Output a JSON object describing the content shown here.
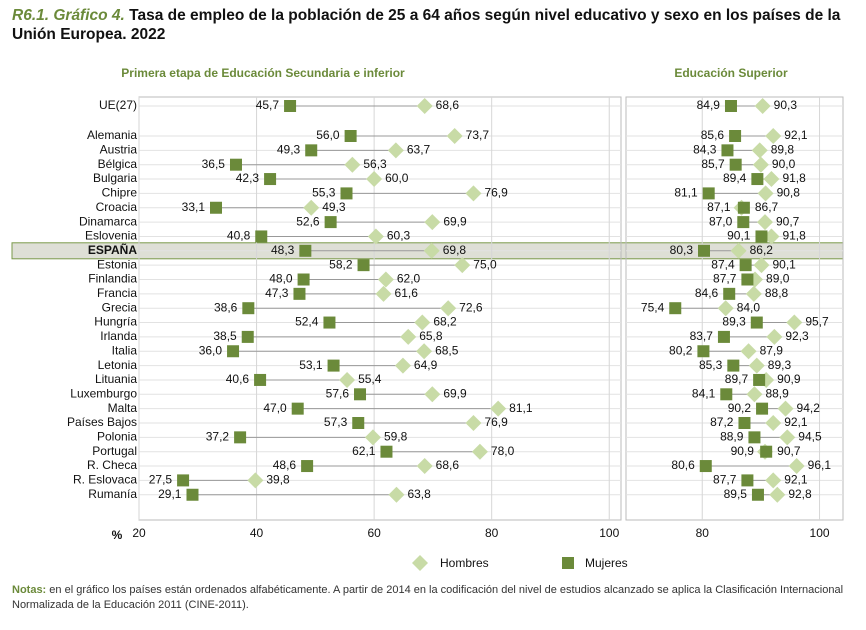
{
  "title": {
    "label": "R6.1. Gráfico 4.",
    "text": "Tasa de empleo de la población de 25 a 64 años según nivel educativo y sexo en los países de la Unión Europea. 2022"
  },
  "notes": {
    "label": "Notas:",
    "text": "en el gráfico los países están ordenados alfabéticamente. A partir de 2014 en la codificación del nivel de estudios alcanzado se aplica la Clasificación Internacional Normalizada de la Educación 2011 (CINE-2011)."
  },
  "chart_data": [
    {
      "type": "dot",
      "title": "Primera etapa de Educación Secundaria e inferior",
      "xlabel": "%",
      "highlight_index": 9,
      "categories": [
        "UE(27)",
        "Alemania",
        "Austria",
        "Bélgica",
        "Bulgaria",
        "Chipre",
        "Croacia",
        "Dinamarca",
        "Eslovenia",
        "ESPAÑA",
        "Estonia",
        "Finlandia",
        "Francia",
        "Grecia",
        "Hungría",
        "Irlanda",
        "Italia",
        "Letonia",
        "Lituania",
        "Luxemburgo",
        "Malta",
        "Países Bajos",
        "Polonia",
        "Portugal",
        "R. Checa",
        "R. Eslovaca",
        "Rumanía"
      ],
      "series": [
        {
          "name": "Hombres",
          "color": "#c8dba6",
          "marker": "diamond",
          "values": [
            68.6,
            73.7,
            63.7,
            56.3,
            60.0,
            76.9,
            49.3,
            69.9,
            60.3,
            69.8,
            75.0,
            62.0,
            61.6,
            72.6,
            68.2,
            65.8,
            68.5,
            64.9,
            55.4,
            69.9,
            81.1,
            76.9,
            59.8,
            78.0,
            68.6,
            39.8,
            63.8
          ],
          "value_labels": [
            "68,6",
            "73,7",
            "63,7",
            "56,3",
            "60,0",
            "76,9",
            "49,3",
            "69,9",
            "60,3",
            "69,8",
            "75,0",
            "62,0",
            "61,6",
            "72,6",
            "68,2",
            "65,8",
            "68,5",
            "64,9",
            "55,4",
            "69,9",
            "81,1",
            "76,9",
            "59,8",
            "78,0",
            "68,6",
            "39,8",
            "63,8"
          ]
        },
        {
          "name": "Mujeres",
          "color": "#6b8a3a",
          "marker": "square",
          "values": [
            45.7,
            56.0,
            49.3,
            36.5,
            42.3,
            55.3,
            33.1,
            52.6,
            40.8,
            48.3,
            58.2,
            48.0,
            47.3,
            38.6,
            52.4,
            38.5,
            36.0,
            53.1,
            40.6,
            57.6,
            47.0,
            57.3,
            37.2,
            62.1,
            48.6,
            27.5,
            29.1
          ],
          "value_labels": [
            "45,7",
            "56,0",
            "49,3",
            "36,5",
            "42,3",
            "55,3",
            "33,1",
            "52,6",
            "40,8",
            "48,3",
            "58,2",
            "48,0",
            "47,3",
            "38,6",
            "52,4",
            "38,5",
            "36,0",
            "53,1",
            "40,6",
            "57,6",
            "47,0",
            "57,3",
            "37,2",
            "62,1",
            "48,6",
            "27,5",
            "29,1"
          ]
        }
      ],
      "xlim": [
        20,
        102
      ],
      "xticks": [
        20,
        40,
        60,
        80,
        100
      ]
    },
    {
      "type": "dot",
      "title": "Educación Superior",
      "highlight_index": 9,
      "series": [
        {
          "name": "Hombres",
          "color": "#c8dba6",
          "marker": "diamond",
          "values": [
            90.3,
            92.1,
            89.8,
            90.0,
            91.8,
            90.8,
            86.7,
            90.7,
            91.8,
            86.2,
            90.1,
            89.0,
            88.8,
            84.0,
            95.7,
            92.3,
            87.9,
            89.3,
            90.9,
            88.9,
            94.2,
            92.1,
            94.5,
            90.7,
            96.1,
            92.1,
            92.8
          ],
          "value_labels": [
            "90,3",
            "92,1",
            "89,8",
            "90,0",
            "91,8",
            "90,8",
            "86,7",
            "90,7",
            "91,8",
            "86,2",
            "90,1",
            "89,0",
            "88,8",
            "84,0",
            "95,7",
            "92,3",
            "87,9",
            "89,3",
            "90,9",
            "88,9",
            "94,2",
            "92,1",
            "94,5",
            "90,7",
            "96,1",
            "92,1",
            "92,8"
          ]
        },
        {
          "name": "Mujeres",
          "color": "#6b8a3a",
          "marker": "square",
          "values": [
            84.9,
            85.6,
            84.3,
            85.7,
            89.4,
            81.1,
            87.1,
            87.0,
            90.1,
            80.3,
            87.4,
            87.7,
            84.6,
            75.4,
            89.3,
            83.7,
            80.2,
            85.3,
            89.7,
            84.1,
            90.2,
            87.2,
            88.9,
            90.9,
            80.6,
            87.7,
            89.5
          ],
          "value_labels": [
            "84,9",
            "85,6",
            "84,3",
            "85,7",
            "89,4",
            "81,1",
            "87,1",
            "87,0",
            "90,1",
            "80,3",
            "87,4",
            "87,7",
            "84,6",
            "75,4",
            "89,3",
            "83,7",
            "80,2",
            "85,3",
            "89,7",
            "84,1",
            "90,2",
            "87,2",
            "88,9",
            "90,9",
            "80,6",
            "87,7",
            "89,5"
          ]
        }
      ],
      "xlim": [
        67,
        104
      ],
      "xticks": [
        80,
        100
      ]
    }
  ]
}
